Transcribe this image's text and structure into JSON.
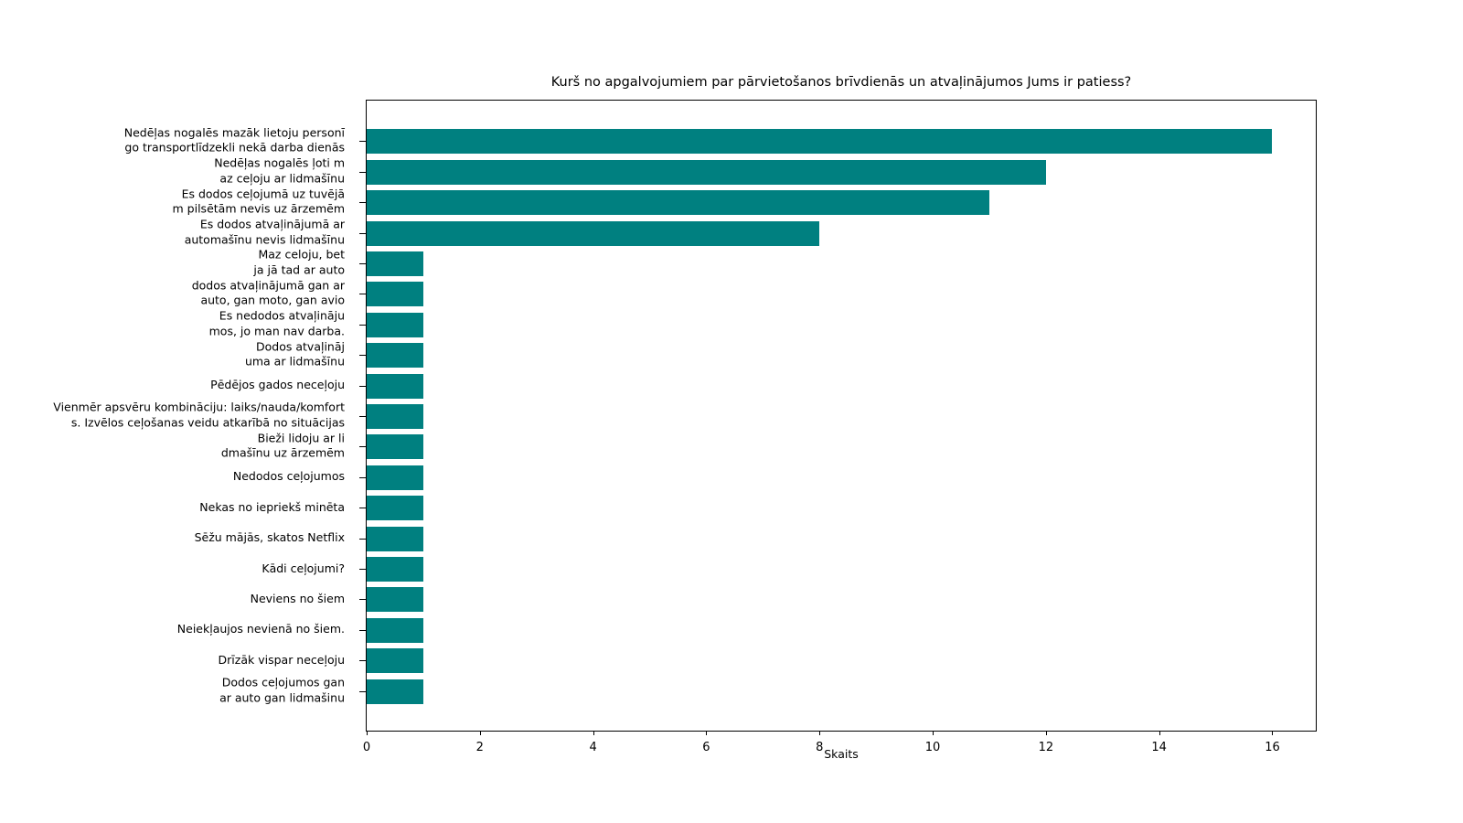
{
  "chart_data": {
    "type": "bar",
    "orientation": "horizontal",
    "title": "Kurš no apgalvojumiem par pārvietošanos brīvdienās un atvaļinājumos Jums ir patiess?",
    "xlabel": "Skaits",
    "ylabel": "",
    "bar_color": "#008080",
    "background_color": "#ffffff",
    "grid": false,
    "legend": false,
    "xlim": [
      0,
      16.8
    ],
    "x_ticks": [
      0,
      2,
      4,
      6,
      8,
      10,
      12,
      14,
      16
    ],
    "categories": [
      "Nedēļas nogalēs mazāk lietoju personī\ngo transportlīdzekli nekā darba dienās",
      "Nedēļas nogalēs ļoti m\naz ceļoju ar lidmašīnu",
      "Es dodos ceļojumā uz tuvējā\nm pilsētām nevis uz ārzemēm",
      "Es dodos atvaļinājumā ar\nautomašīnu nevis lidmašīnu",
      "Maz celoju, bet\nja jā tad ar auto",
      "dodos atvaļinājumā gan ar\nauto, gan moto, gan avio",
      "Es nedodos atvaļināju\nmos, jo man nav darba.",
      "Dodos atvaļināj\numa ar lidmašīnu",
      "Pēdējos gados neceļoju",
      "Vienmēr apsvēru kombināciju: laiks/nauda/komfort\ns. Izvēlos ceļošanas veidu atkarībā no situācijas",
      "Bieži lidoju ar li\ndmašīnu uz ārzemēm",
      "Nedodos ceļojumos",
      "Nekas no iepriekš minēta",
      "Sēžu mājās, skatos Netflix",
      "Kādi ceļojumi?",
      "Neviens no šiem",
      "Neiekļaujos nevienā no šiem.",
      "Drīzāk vispar neceļoju",
      "Dodos ceļojumos gan\nar auto gan lidmašinu"
    ],
    "values": [
      16,
      12,
      11,
      8,
      1,
      1,
      1,
      1,
      1,
      1,
      1,
      1,
      1,
      1,
      1,
      1,
      1,
      1,
      1
    ]
  }
}
